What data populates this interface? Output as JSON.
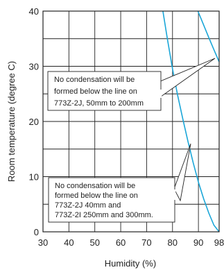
{
  "chart_data": {
    "type": "line",
    "xlabel": "Humidity (%)",
    "ylabel": "Room temperature (degree C)",
    "x_ticks": [
      30,
      40,
      50,
      60,
      70,
      80,
      90,
      98
    ],
    "y_ticks": [
      0,
      10,
      20,
      30,
      40
    ],
    "xlim": [
      30,
      98
    ],
    "ylim": [
      0,
      40
    ],
    "grid": true,
    "line_color": "#1aa6d8",
    "series": [
      {
        "x": [
          76.3,
          78.0,
          80.0,
          82.0,
          84.0,
          86.0,
          88.0,
          90.0,
          92.0,
          94.0,
          96.0,
          98.0
        ],
        "y": [
          40.0,
          35.0,
          29.5,
          24.7,
          20.4,
          16.3,
          12.5,
          9.0,
          6.0,
          3.4,
          1.2,
          0.0
        ]
      },
      {
        "x": [
          89.8,
          92.0,
          94.0,
          96.0,
          98.0
        ],
        "y": [
          40.0,
          37.5,
          35.2,
          33.0,
          30.8
        ]
      }
    ],
    "annotations": [
      {
        "lines": [
          "No condensation will be",
          "formed below the line on",
          "773Z-2J, 50mm to 200mm"
        ]
      },
      {
        "lines": [
          "No condensation will be",
          "formed below the line on",
          "773Z-2J 40mm and",
          "773Z-2I  250mm and 300mm."
        ]
      }
    ]
  }
}
